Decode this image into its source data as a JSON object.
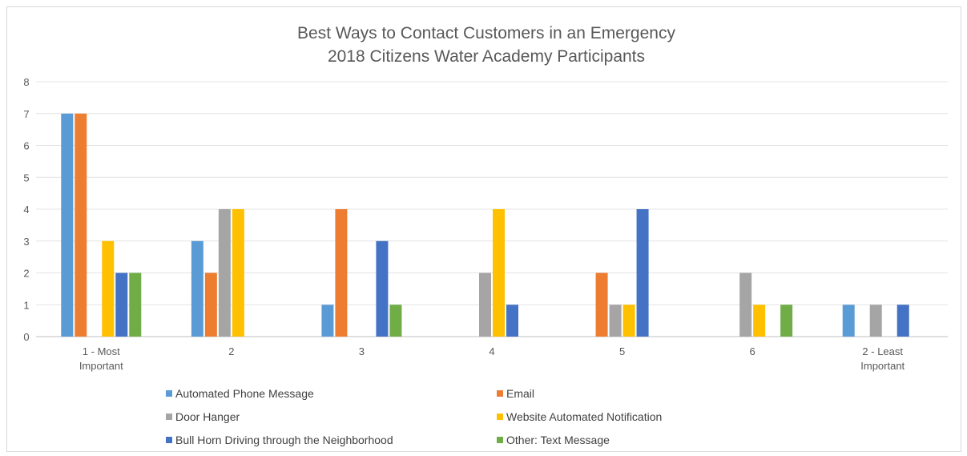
{
  "chart_data": {
    "type": "bar",
    "title": [
      "Best Ways to Contact Customers in an Emergency",
      "2018 Citizens Water Academy Participants"
    ],
    "xlabel": "",
    "ylabel": "",
    "ylim": [
      0,
      8
    ],
    "yticks": [
      0,
      1,
      2,
      3,
      4,
      5,
      6,
      7,
      8
    ],
    "grid": true,
    "legend_position": "bottom",
    "categories": [
      [
        "1 - Most",
        "Important"
      ],
      [
        "2"
      ],
      [
        "3"
      ],
      [
        "4"
      ],
      [
        "5"
      ],
      [
        "6"
      ],
      [
        "2 - Least",
        "Important"
      ]
    ],
    "series": [
      {
        "name": "Automated Phone Message",
        "color": "#5b9bd5",
        "values": [
          7,
          3,
          1,
          0,
          0,
          0,
          1
        ]
      },
      {
        "name": "Email",
        "color": "#ed7d31",
        "values": [
          7,
          2,
          4,
          0,
          2,
          0,
          0
        ]
      },
      {
        "name": "Door Hanger",
        "color": "#a5a5a5",
        "values": [
          0,
          4,
          0,
          2,
          1,
          2,
          1
        ]
      },
      {
        "name": "Website Automated Notification",
        "color": "#ffc000",
        "values": [
          3,
          4,
          0,
          4,
          1,
          1,
          0
        ]
      },
      {
        "name": "Bull Horn Driving through the Neighborhood",
        "color": "#4472c4",
        "values": [
          2,
          0,
          3,
          1,
          4,
          0,
          1
        ]
      },
      {
        "name": "Other: Text Message",
        "color": "#70ad47",
        "values": [
          2,
          0,
          1,
          0,
          0,
          1,
          0
        ]
      }
    ]
  }
}
